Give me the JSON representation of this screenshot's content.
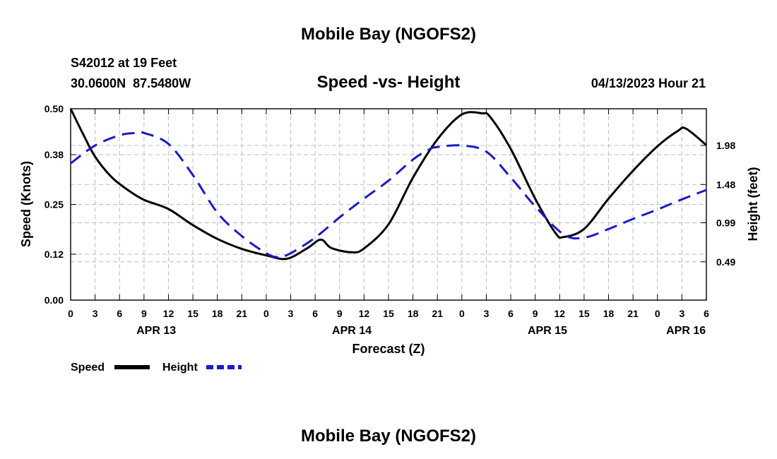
{
  "header": {
    "title": "Mobile Bay (NGOFS2)",
    "station": "S42012 at 19 Feet",
    "coords": "30.0600N  87.5480W",
    "subtitle": "Speed -vs- Height",
    "timestamp": "04/13/2023 Hour 21"
  },
  "footer": {
    "title": "Mobile Bay (NGOFS2)"
  },
  "colors": {
    "speed": "#000000",
    "height": "#1a1acc",
    "grid": "#bbbbbb"
  },
  "chart_data": {
    "type": "line",
    "title": "Speed -vs- Height",
    "xlabel": "Forecast (Z)",
    "ylabel": "Speed (Knots)",
    "y2label": "Height (feet)",
    "x_unit": "hours since 2023-04-13 00Z",
    "xlim": [
      0,
      78
    ],
    "ylim": [
      0,
      0.5
    ],
    "y2lim": [
      0.0,
      2.45
    ],
    "grid": true,
    "legend_position": "bottom-left",
    "x_ticks": [
      0,
      3,
      6,
      9,
      12,
      15,
      18,
      21,
      24,
      27,
      30,
      33,
      36,
      39,
      42,
      45,
      48,
      51,
      54,
      57,
      60,
      63,
      66,
      69,
      72,
      75,
      78
    ],
    "x_tick_labels": [
      "0",
      "3",
      "6",
      "9",
      "12",
      "15",
      "18",
      "21",
      "0",
      "3",
      "6",
      "9",
      "12",
      "15",
      "18",
      "21",
      "0",
      "3",
      "6",
      "9",
      "12",
      "15",
      "18",
      "21",
      "0",
      "3",
      "6"
    ],
    "date_labels": [
      {
        "label": "APR 13",
        "x": 10.5
      },
      {
        "label": "APR 14",
        "x": 34.5
      },
      {
        "label": "APR 15",
        "x": 58.5
      },
      {
        "label": "APR 16",
        "x": 75.5
      }
    ],
    "y_ticks": [
      0.0,
      0.12,
      0.25,
      0.38,
      0.5
    ],
    "y_tick_labels": [
      "0.00",
      "0.12",
      "0.25",
      "0.38",
      "0.50"
    ],
    "y2_ticks": [
      0.49,
      0.99,
      1.48,
      1.98
    ],
    "y2_tick_labels": [
      "0.49",
      "0.99",
      "1.48",
      "1.98"
    ],
    "series": [
      {
        "name": "Speed",
        "axis": "left",
        "style": "solid",
        "x": [
          0,
          1.5,
          3,
          5,
          7,
          9,
          12,
          15,
          18,
          21,
          24,
          26.5,
          29,
          30.7,
          32,
          34.5,
          36,
          39,
          42,
          45,
          48,
          50.5,
          51.5,
          54,
          57,
          59.5,
          60.5,
          63,
          66,
          69,
          72,
          74.5,
          75.5,
          78
        ],
        "values": [
          0.5,
          0.435,
          0.375,
          0.322,
          0.288,
          0.262,
          0.238,
          0.196,
          0.16,
          0.134,
          0.117,
          0.108,
          0.135,
          0.158,
          0.136,
          0.125,
          0.135,
          0.198,
          0.32,
          0.42,
          0.485,
          0.488,
          0.478,
          0.395,
          0.265,
          0.175,
          0.165,
          0.186,
          0.265,
          0.338,
          0.402,
          0.442,
          0.448,
          0.405
        ]
      },
      {
        "name": "Height",
        "axis": "right",
        "style": "dashed",
        "x": [
          0,
          3,
          6,
          8,
          9,
          12,
          15,
          18,
          21,
          24,
          25.5,
          27,
          30,
          33,
          36,
          39,
          42,
          44,
          45,
          48,
          51,
          54,
          57,
          60.5,
          63,
          66,
          69,
          72,
          75,
          78
        ],
        "values": [
          1.75,
          1.98,
          2.11,
          2.14,
          2.14,
          2.0,
          1.6,
          1.12,
          0.82,
          0.6,
          0.55,
          0.6,
          0.8,
          1.06,
          1.3,
          1.53,
          1.8,
          1.93,
          1.96,
          1.98,
          1.9,
          1.57,
          1.2,
          0.84,
          0.8,
          0.91,
          1.04,
          1.16,
          1.29,
          1.41
        ]
      }
    ]
  }
}
